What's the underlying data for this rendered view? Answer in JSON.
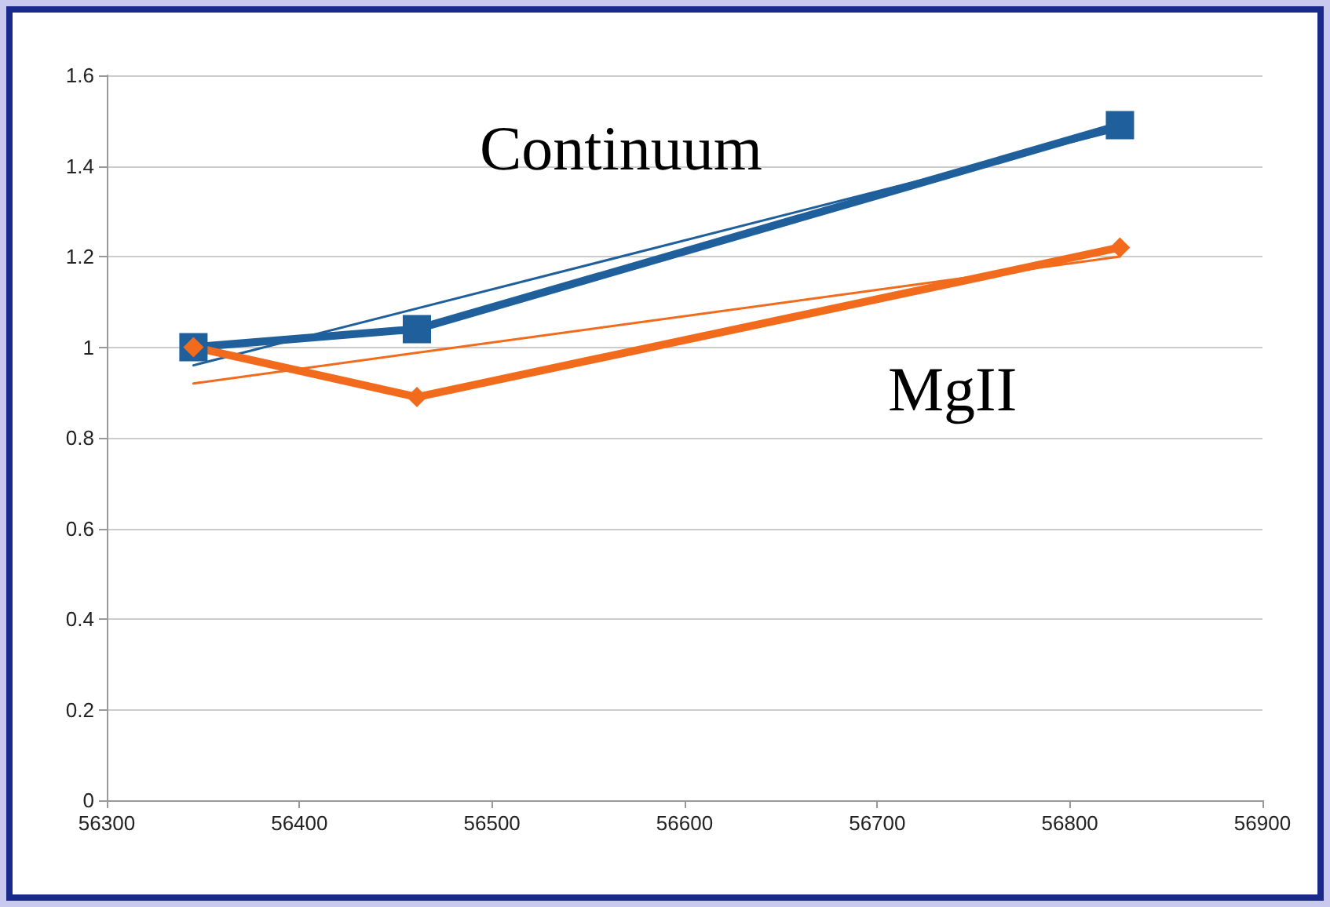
{
  "chart_data": {
    "type": "line",
    "legend": false,
    "grid": "y",
    "line_style": "solid",
    "xlim": [
      56300,
      56900
    ],
    "xticks": [
      56300,
      56400,
      56500,
      56600,
      56700,
      56800,
      56900
    ],
    "ylim": [
      0,
      1.6
    ],
    "yticks": [
      0,
      0.2,
      0.4,
      0.6,
      0.8,
      1,
      1.2,
      1.4,
      1.6
    ],
    "series": [
      {
        "name": "Continuum",
        "color": "#1f5f9b",
        "marker": "square",
        "x": [
          56345,
          56461,
          56826
        ],
        "values": [
          1.0,
          1.04,
          1.49
        ]
      },
      {
        "name": "MgII",
        "color": "#f26b1d",
        "marker": "diamond",
        "x": [
          56345,
          56461,
          56826
        ],
        "values": [
          1.0,
          0.89,
          1.22
        ]
      },
      {
        "type": "line",
        "color": "#1f5f9b",
        "marker": "none",
        "x": [
          56345,
          56826
        ],
        "values": [
          0.96,
          1.48
        ]
      },
      {
        "type": "line",
        "color": "#f26b1d",
        "marker": "none",
        "x": [
          56345,
          56826
        ],
        "values": [
          0.92,
          1.2
        ]
      }
    ]
  }
}
